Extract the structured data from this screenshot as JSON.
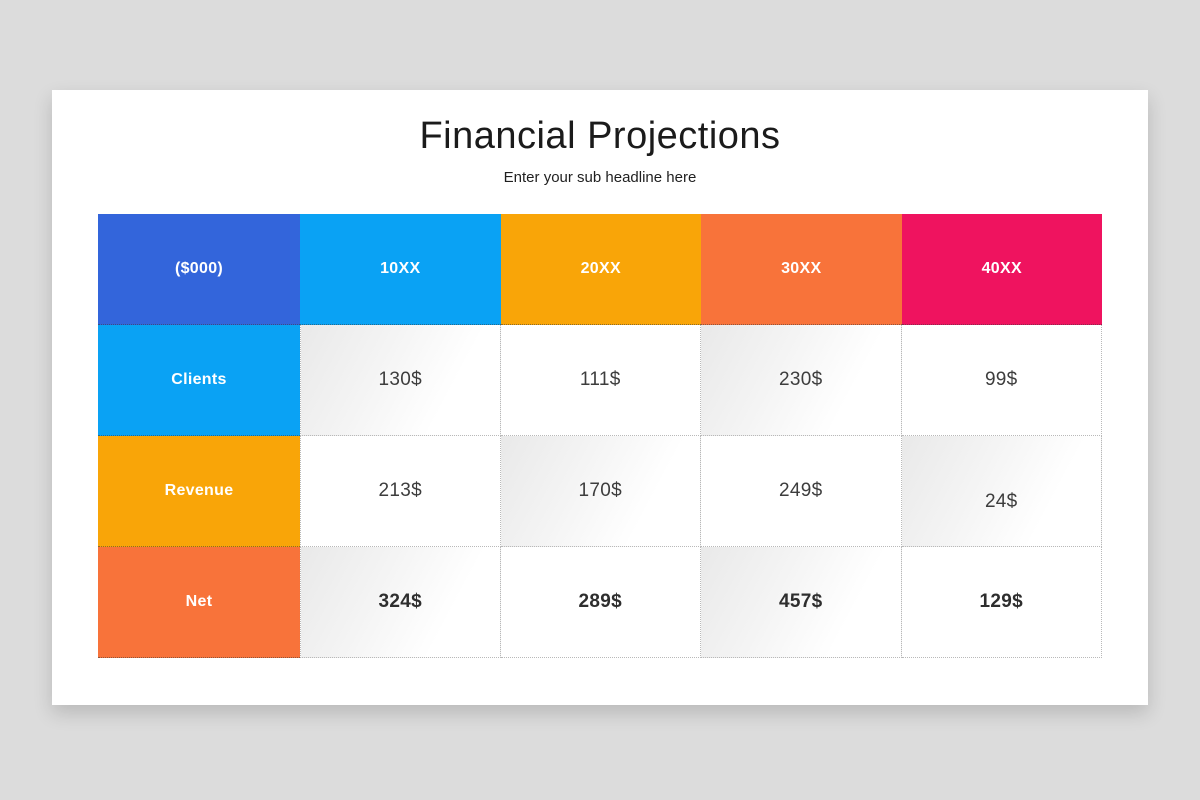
{
  "page": {
    "background": "#dcdcdc"
  },
  "slide": {
    "title": "Financial Projections",
    "subtitle": "Enter your sub headline here"
  },
  "table": {
    "corner_label": "($000)",
    "corner_color": "#3365DB",
    "header": [
      {
        "label": "10XX",
        "color": "#0AA2F4"
      },
      {
        "label": "20XX",
        "color": "#F9A508"
      },
      {
        "label": "30XX",
        "color": "#F8733A"
      },
      {
        "label": "40XX",
        "color": "#EF135F"
      }
    ],
    "rows": [
      {
        "label": "Clients",
        "color": "#0AA2F4",
        "values": [
          "130$",
          "111$",
          "230$",
          "99$"
        ]
      },
      {
        "label": "Revenue",
        "color": "#F9A508",
        "values": [
          "213$",
          "170$",
          "249$",
          "24$"
        ]
      },
      {
        "label": "Net",
        "color": "#F8733A",
        "values": [
          "324$",
          "289$",
          "457$",
          "129$"
        ]
      }
    ]
  },
  "chart_data": {
    "type": "table",
    "title": "Financial Projections",
    "subtitle": "Enter your sub headline here",
    "unit_label": "($000)",
    "columns": [
      "10XX",
      "20XX",
      "30XX",
      "40XX"
    ],
    "rows": [
      {
        "label": "Clients",
        "values": [
          130,
          111,
          230,
          99
        ],
        "unit": "$"
      },
      {
        "label": "Revenue",
        "values": [
          213,
          170,
          249,
          24
        ],
        "unit": "$"
      },
      {
        "label": "Net",
        "values": [
          324,
          289,
          457,
          129
        ],
        "unit": "$"
      }
    ],
    "header_colors": [
      "#3365DB",
      "#0AA2F4",
      "#F9A508",
      "#F8733A",
      "#EF135F"
    ],
    "row_label_colors": [
      "#0AA2F4",
      "#F9A508",
      "#F8733A"
    ]
  }
}
